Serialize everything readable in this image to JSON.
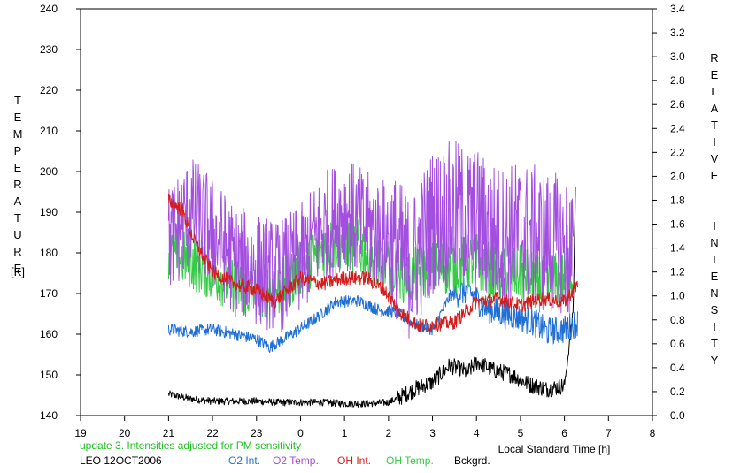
{
  "chart_data": {
    "type": "line",
    "left_axis": {
      "label_letters": [
        "T",
        "E",
        "M",
        "P",
        "E",
        "R",
        "A",
        "T",
        "U",
        "R",
        "E"
      ],
      "unit": "[K]",
      "range": [
        140,
        240
      ],
      "ticks": [
        140,
        150,
        160,
        170,
        180,
        190,
        200,
        210,
        220,
        230,
        240
      ]
    },
    "right_axis": {
      "label_word1": [
        "R",
        "E",
        "L",
        "A",
        "T",
        "I",
        "V",
        "E"
      ],
      "label_word2": [
        "I",
        "N",
        "T",
        "E",
        "N",
        "S",
        "I",
        "T",
        "Y"
      ],
      "range": [
        0.0,
        3.4
      ],
      "ticks": [
        "0.0",
        "0.2",
        "0.4",
        "0.6",
        "0.8",
        "1.0",
        "1.2",
        "1.4",
        "1.6",
        "1.8",
        "2.0",
        "2.2",
        "2.4",
        "2.6",
        "2.8",
        "3.0",
        "3.2",
        "3.4"
      ]
    },
    "x_axis": {
      "label": "Local Standard Time [h]",
      "range": [
        19,
        32
      ],
      "tick_labels": [
        "19",
        "20",
        "21",
        "22",
        "23",
        "0",
        "1",
        "2",
        "3",
        "4",
        "5",
        "6",
        "7",
        "8"
      ]
    },
    "series": [
      {
        "name": "O2 Int.",
        "color": "#1f6fd6",
        "axis": "right",
        "x": [
          21.0,
          21.5,
          22.0,
          22.5,
          23.0,
          23.3,
          23.8,
          24.3,
          24.8,
          25.3,
          25.8,
          26.2,
          26.6,
          27.0,
          27.4,
          27.8,
          28.2,
          28.6,
          29.0,
          29.3,
          29.6,
          30.0,
          30.3
        ],
        "y": [
          0.72,
          0.7,
          0.72,
          0.68,
          0.64,
          0.57,
          0.68,
          0.8,
          0.95,
          0.96,
          0.88,
          0.86,
          0.76,
          0.72,
          1.0,
          1.05,
          0.9,
          0.85,
          0.82,
          0.78,
          0.7,
          0.72,
          0.78
        ]
      },
      {
        "name": "O2 Temp.",
        "color": "#a44ee0",
        "axis": "left",
        "x": [
          21.0,
          21.5,
          22.0,
          22.5,
          23.0,
          23.5,
          24.0,
          24.5,
          25.0,
          25.5,
          26.0,
          26.5,
          27.0,
          27.5,
          28.0,
          28.5,
          29.0,
          29.5,
          30.0,
          30.2
        ],
        "y": [
          183,
          190,
          185,
          178,
          176,
          174,
          178,
          186,
          190,
          186,
          184,
          176,
          188,
          190,
          188,
          184,
          185,
          183,
          181,
          180
        ]
      },
      {
        "name": "OH Int.",
        "color": "#d41c1c",
        "axis": "right",
        "x": [
          21.0,
          21.3,
          21.6,
          22.0,
          22.5,
          23.0,
          23.4,
          24.0,
          24.5,
          25.0,
          25.5,
          25.9,
          26.3,
          26.7,
          27.0,
          27.5,
          28.0,
          28.5,
          29.0,
          29.5,
          30.0,
          30.3
        ],
        "y": [
          1.8,
          1.72,
          1.45,
          1.2,
          1.1,
          1.05,
          0.95,
          1.15,
          1.1,
          1.15,
          1.15,
          1.05,
          0.85,
          0.75,
          0.76,
          0.78,
          0.95,
          0.98,
          0.92,
          0.98,
          0.95,
          1.1
        ]
      },
      {
        "name": "OH Temp.",
        "color": "#33cc44",
        "axis": "left",
        "x": [
          21.0,
          21.5,
          22.0,
          22.5,
          23.0,
          23.5,
          24.0,
          24.5,
          25.0,
          25.5,
          26.0,
          26.5,
          27.0,
          27.5,
          28.0,
          28.5,
          29.0,
          29.5,
          30.0,
          30.2
        ],
        "y": [
          180,
          178,
          175,
          172,
          170,
          171,
          176,
          181,
          183,
          180,
          176,
          174,
          176,
          177,
          178,
          174,
          175,
          172,
          174,
          175
        ]
      },
      {
        "name": "Bckgrd.",
        "color": "#000000",
        "axis": "right",
        "x": [
          21.0,
          21.5,
          22.0,
          22.5,
          23.0,
          23.5,
          24.0,
          24.5,
          25.0,
          25.5,
          26.0,
          26.3,
          26.6,
          27.0,
          27.4,
          27.8,
          28.0,
          28.4,
          28.8,
          29.2,
          29.6,
          30.0,
          30.1,
          30.2,
          30.25
        ],
        "y": [
          0.18,
          0.14,
          0.12,
          0.12,
          0.12,
          0.11,
          0.11,
          0.11,
          0.1,
          0.1,
          0.11,
          0.16,
          0.22,
          0.28,
          0.42,
          0.36,
          0.45,
          0.38,
          0.34,
          0.26,
          0.22,
          0.25,
          0.55,
          0.9,
          1.9
        ]
      }
    ]
  },
  "footer": {
    "update_note": "update 3. Intensities adjusted for PM sensitivity",
    "site_date": "LEO 12OCT2006",
    "legend": [
      "O2 Int.",
      "O2 Temp.",
      "OH Int.",
      "OH Temp.",
      "Bckgrd."
    ]
  },
  "colors": {
    "o2_int": "#1f6fd6",
    "o2_temp": "#a44ee0",
    "oh_int": "#d41c1c",
    "oh_temp": "#33cc44",
    "bckgrd": "#000000",
    "note": "#22c022"
  }
}
